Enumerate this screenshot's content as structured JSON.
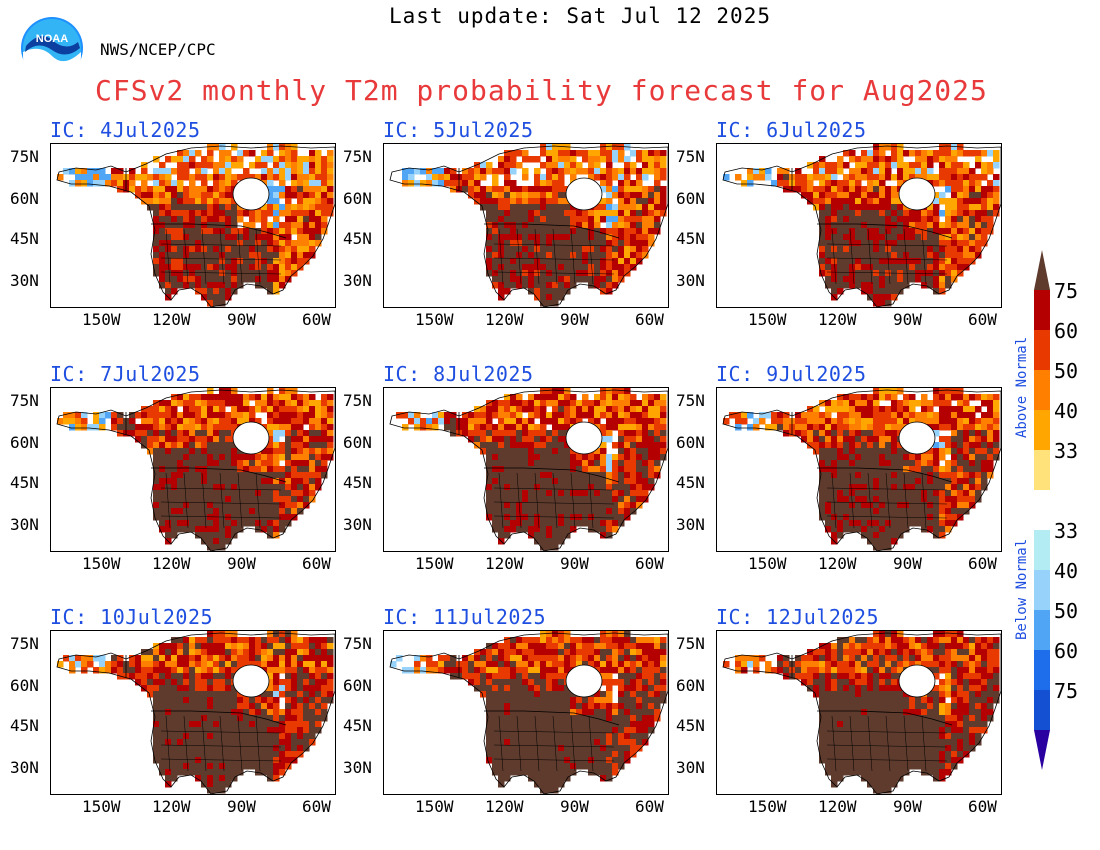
{
  "header": {
    "last_update": "Last update: Sat Jul 12 2025",
    "agency": "NWS/NCEP/CPC",
    "title": "CFSv2 monthly T2m probability forecast for Aug2025",
    "logo_text": "NOAA"
  },
  "map_axes": {
    "lat_labels": [
      "75N",
      "60N",
      "45N",
      "30N"
    ],
    "lon_labels": [
      "150W",
      "120W",
      "90W",
      "60W"
    ]
  },
  "panels": [
    {
      "ic": "IC: 4Jul2025",
      "level": 0.62
    },
    {
      "ic": "IC: 5Jul2025",
      "level": 0.64
    },
    {
      "ic": "IC: 6Jul2025",
      "level": 0.66
    },
    {
      "ic": "IC: 7Jul2025",
      "level": 0.74
    },
    {
      "ic": "IC: 8Jul2025",
      "level": 0.76
    },
    {
      "ic": "IC: 9Jul2025",
      "level": 0.74
    },
    {
      "ic": "IC: 10Jul2025",
      "level": 0.8
    },
    {
      "ic": "IC: 11Jul2025",
      "level": 0.82
    },
    {
      "ic": "IC: 12Jul2025",
      "level": 0.84
    }
  ],
  "legend": {
    "above_label": "Above Normal",
    "below_label": "Below Normal",
    "above_colors": [
      "#5e3b2d",
      "#b40000",
      "#e83a00",
      "#ff7f00",
      "#ffa600",
      "#ffe27a"
    ],
    "below_colors": [
      "#b4ecf4",
      "#96d2fa",
      "#50a5f5",
      "#1e6eeb",
      "#1450d2",
      "#2a00a0"
    ],
    "above_ticks": [
      "75",
      "60",
      "50",
      "40",
      "33"
    ],
    "below_ticks": [
      "33",
      "40",
      "50",
      "60",
      "75"
    ]
  }
}
